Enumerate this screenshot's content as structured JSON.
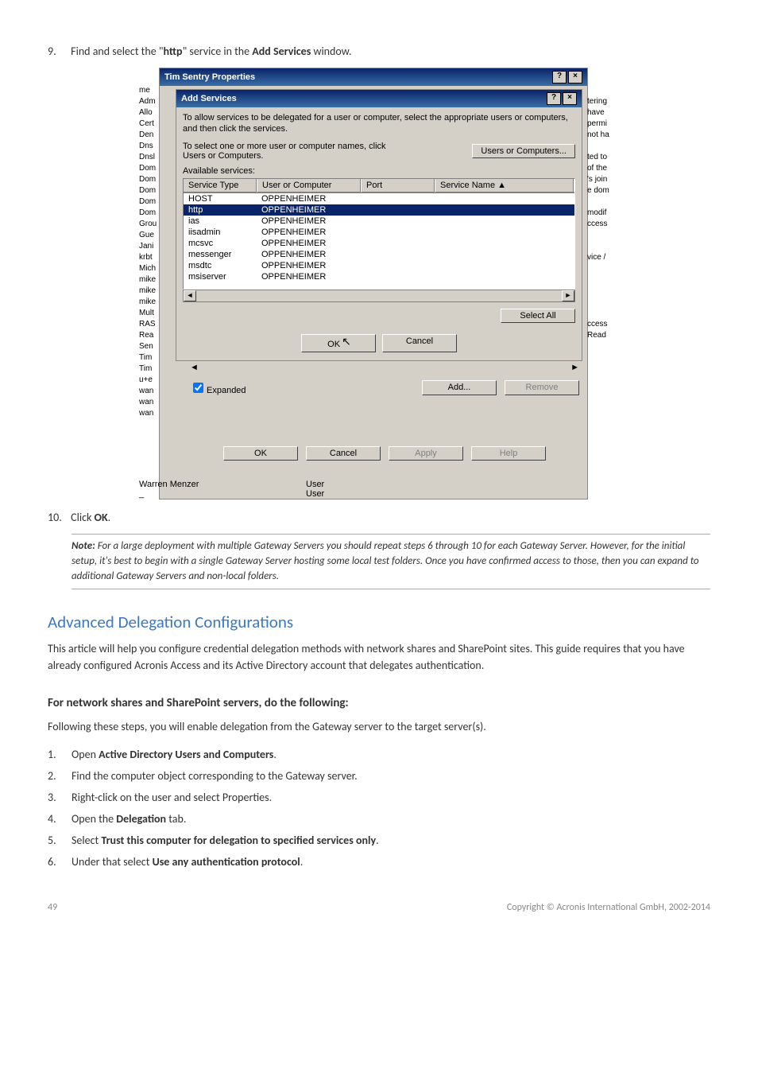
{
  "step9": {
    "num": "9.",
    "pre": "Find and select the \"",
    "svc": "http",
    "mid": "\" service in the ",
    "win": "Add Services",
    "post": " window."
  },
  "fig": {
    "propTitle": "Tim Sentry Properties",
    "addTitle": "Add Services",
    "instr1": "To allow services to be delegated for a user or computer, select the appropriate users or computers, and then click the services.",
    "selectLabel": "To select one or more user or computer names, click Users or Computers.",
    "usersBtn": "Users or Computers...",
    "avail": "Available services:",
    "hdr": {
      "st": "Service Type",
      "uc": "User or Computer",
      "pt": "Port",
      "sn": "Service Name"
    },
    "rows": [
      {
        "st": "HOST",
        "uc": "OPPENHEIMER"
      },
      {
        "st": "http",
        "uc": "OPPENHEIMER",
        "sel": true
      },
      {
        "st": "ias",
        "uc": "OPPENHEIMER"
      },
      {
        "st": "iisadmin",
        "uc": "OPPENHEIMER"
      },
      {
        "st": "mcsvc",
        "uc": "OPPENHEIMER"
      },
      {
        "st": "messenger",
        "uc": "OPPENHEIMER"
      },
      {
        "st": "msdtc",
        "uc": "OPPENHEIMER"
      },
      {
        "st": "msiserver",
        "uc": "OPPENHEIMER"
      }
    ],
    "selectAll": "Select All",
    "ok": "OK",
    "cancel": "Cancel",
    "expanded": "Expanded",
    "add": "Add...",
    "remove": "Remove",
    "apply": "Apply",
    "help": "Help",
    "leftNames": [
      "me",
      "Adm",
      "Allo",
      "Cert",
      "Den",
      "Dns",
      "Dnsl",
      "Dom",
      "Dom",
      "Dom",
      "Dom",
      "Dom",
      "Grou",
      "Gue",
      "Jani",
      "krbt",
      "Mich",
      "mike",
      "mike",
      "mike",
      "Mult",
      "RAS",
      "Rea",
      "Sen",
      "Tim",
      "Tim",
      "u+e",
      "wan",
      "wan",
      "wan"
    ],
    "rightNames": [
      "",
      "tering",
      "have",
      "permi",
      "not ha",
      "",
      "ted to",
      "of the",
      "'s join",
      "e dom",
      "",
      "modif",
      "ccess",
      "",
      "",
      "vice /",
      "",
      "",
      "",
      "",
      "",
      "ccess",
      "Read",
      "",
      "",
      "",
      "",
      "",
      ""
    ],
    "belowName": "Warren Menzer",
    "belowType1": "User",
    "belowType2": "User"
  },
  "step10": {
    "num": "10.",
    "pre": "Click ",
    "btn": "OK",
    "post": "."
  },
  "note": {
    "label": "Note:",
    "body": " For a large deployment with multiple Gateway Servers you should repeat steps 6 through 10 for each Gateway Server. However, for the initial setup, it's best to begin with a single Gateway Server hosting some local test folders. Once you have confirmed access to those, then you can expand to additional Gateway Servers and non-local folders."
  },
  "h2": "Advanced Delegation Configurations",
  "para1": "This article will help you configure credential delegation methods with network shares and SharePoint sites. This guide requires that you have already configured Acronis Access and its Active Directory account that delegates authentication.",
  "h3": "For network shares and SharePoint servers, do the following:",
  "para2": "Following these steps, you will enable delegation from the Gateway server to the target server(s).",
  "list": {
    "i1": {
      "n": "1.",
      "pre": "Open ",
      "b": "Active Directory Users and Computers",
      "post": "."
    },
    "i2": {
      "n": "2.",
      "t": "Find the computer object corresponding to the Gateway server."
    },
    "i3": {
      "n": "3.",
      "t": "Right-click on the user and select Properties."
    },
    "i4": {
      "n": "4.",
      "pre": "Open the ",
      "b": "Delegation",
      "post": " tab."
    },
    "i5": {
      "n": "5.",
      "pre": "Select ",
      "b": "Trust this computer for delegation to specified services only",
      "post": "."
    },
    "i6": {
      "n": "6.",
      "pre": "Under that select ",
      "b": "Use any authentication protocol",
      "post": "."
    }
  },
  "footer": {
    "page": "49",
    "copy": "Copyright © Acronis International GmbH, 2002-2014"
  }
}
